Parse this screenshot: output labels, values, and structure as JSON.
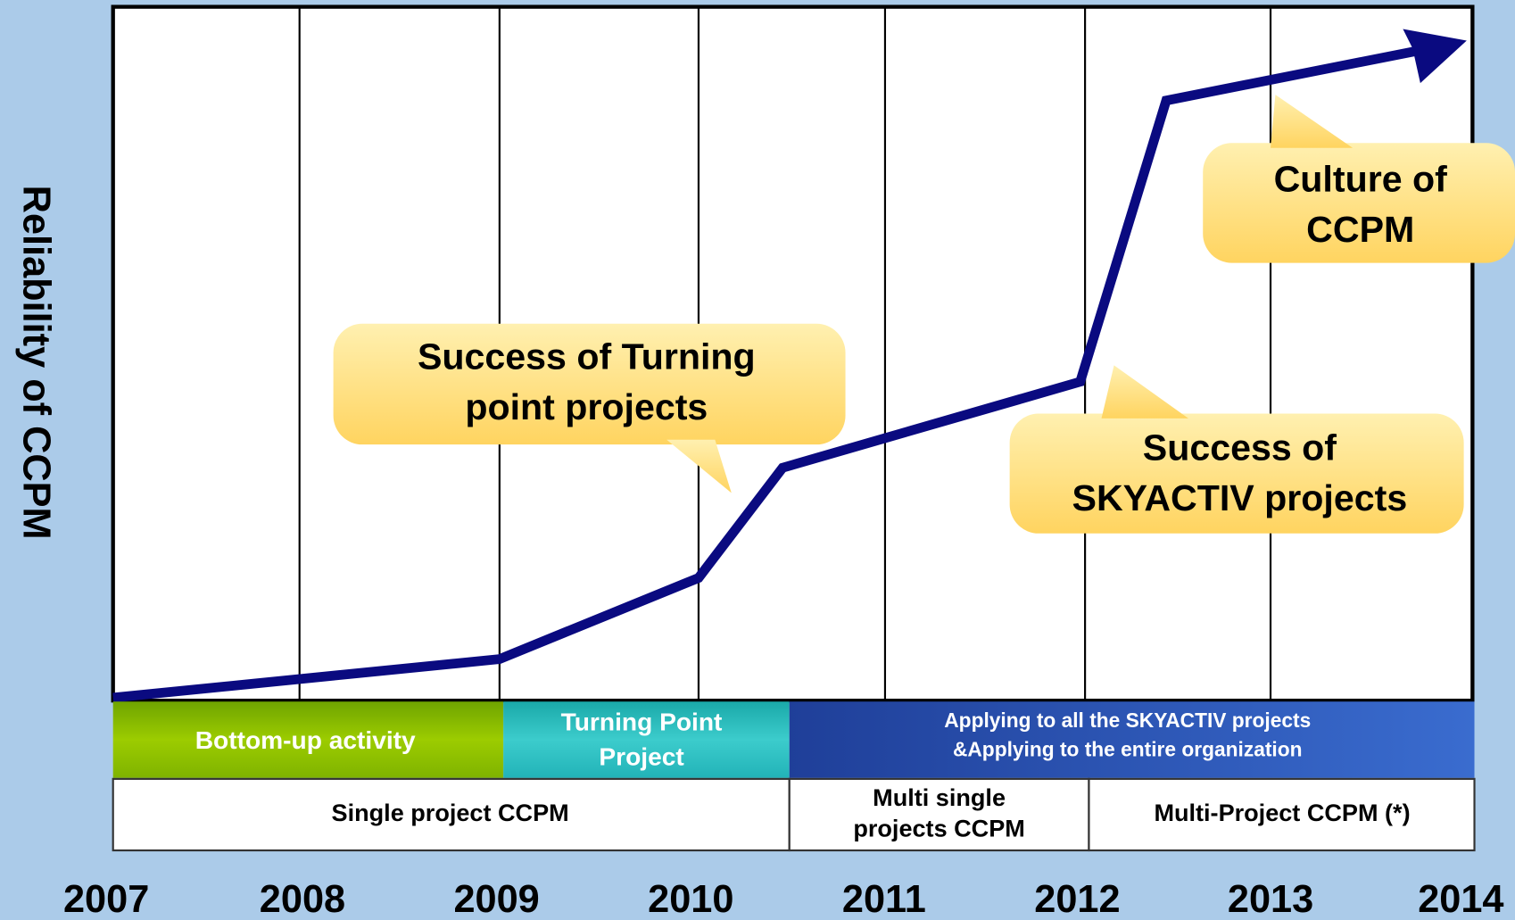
{
  "y_axis_label": "Reliability of CCPM",
  "years": [
    "2007",
    "2008",
    "2009",
    "2010",
    "2011",
    "2012",
    "2013",
    "2014"
  ],
  "callouts": [
    {
      "lines": [
        "Success of Turning",
        "point  projects"
      ]
    },
    {
      "lines": [
        "Success of",
        "SKYACTIV projects"
      ]
    },
    {
      "lines": [
        "Culture of",
        "CCPM"
      ]
    }
  ],
  "phases": [
    {
      "lines": [
        "Bottom-up activity"
      ]
    },
    {
      "lines": [
        "Turning Point",
        "Project"
      ]
    },
    {
      "lines": [
        "Applying to all the SKYACTIV projects",
        "&Applying to the entire organization"
      ]
    }
  ],
  "methods": [
    {
      "lines": [
        "Single project  CCPM"
      ]
    },
    {
      "lines": [
        "Multi single",
        "projects CCPM"
      ]
    },
    {
      "lines": [
        "Multi-Project CCPM (*)"
      ]
    }
  ]
}
